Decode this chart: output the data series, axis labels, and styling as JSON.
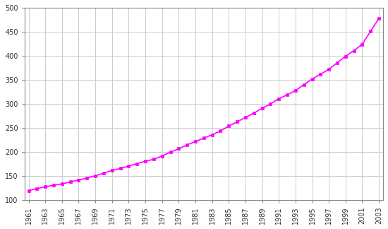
{
  "years": [
    1961,
    1962,
    1963,
    1964,
    1965,
    1966,
    1967,
    1968,
    1969,
    1970,
    1971,
    1972,
    1973,
    1974,
    1975,
    1976,
    1977,
    1978,
    1979,
    1980,
    1981,
    1982,
    1983,
    1984,
    1985,
    1986,
    1987,
    1988,
    1989,
    1990,
    1991,
    1992,
    1993,
    1994,
    1995,
    1996,
    1997,
    1998,
    1999,
    2000,
    2001,
    2002,
    2003
  ],
  "population": [
    120,
    124,
    128,
    131,
    134,
    138,
    142,
    146,
    151,
    156,
    162,
    166,
    171,
    176,
    181,
    185,
    192,
    200,
    207,
    215,
    222,
    229,
    236,
    244,
    254,
    263,
    272,
    281,
    291,
    300,
    311,
    319,
    328,
    340,
    352,
    362,
    372,
    386,
    399,
    411,
    424,
    451,
    478
  ],
  "line_color": "#FF00FF",
  "marker": "s",
  "markersize": 3.5,
  "linewidth": 1.2,
  "bg_color": "#FFFFFF",
  "grid_color": "#CCCCCC",
  "xlim": [
    1961,
    2003
  ],
  "ylim": [
    100,
    500
  ],
  "yticks": [
    100,
    150,
    200,
    250,
    300,
    350,
    400,
    450,
    500
  ],
  "xticks": [
    1961,
    1963,
    1965,
    1967,
    1969,
    1971,
    1973,
    1975,
    1977,
    1979,
    1981,
    1983,
    1985,
    1987,
    1989,
    1991,
    1993,
    1995,
    1997,
    1999,
    2001,
    2003
  ],
  "tick_fontsize": 7,
  "axis_color": "#888888",
  "label_color": "#333333"
}
